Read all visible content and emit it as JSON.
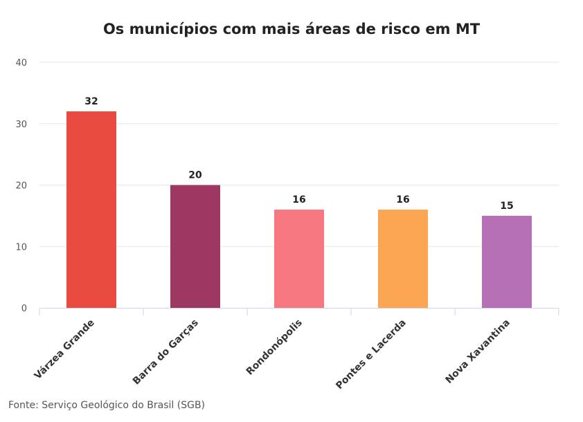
{
  "title": "Os municípios com mais áreas de risco em MT",
  "source": "Fonte: Serviço Geológico do Brasil (SGB)",
  "chart_data": {
    "type": "bar",
    "title": "Os municípios com mais áreas de risco em MT",
    "xlabel": "",
    "ylabel": "",
    "categories": [
      "Várzea Grande",
      "Barra do Garças",
      "Rondonópolis",
      "Pontes e Lacerda",
      "Nova Xavantina"
    ],
    "values": [
      32,
      20,
      16,
      16,
      15
    ],
    "colors": [
      "#e84a3f",
      "#9c3862",
      "#f7787f",
      "#fca552",
      "#b56fb5"
    ],
    "ylim": [
      0,
      40
    ],
    "yticks": [
      0,
      10,
      20,
      30,
      40
    ],
    "grid": true,
    "data_labels": true,
    "legend": "none"
  }
}
